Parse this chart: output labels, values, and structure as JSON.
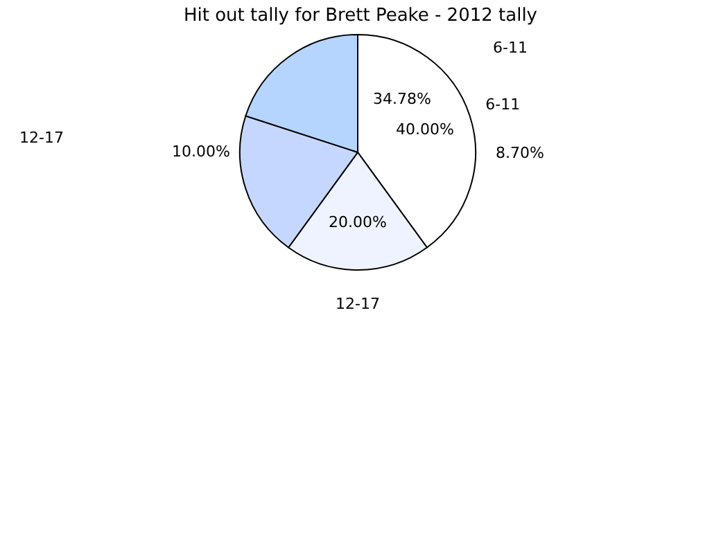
{
  "chart_data": {
    "type": "pie",
    "title": "Hit out tally for Brett Peake - 2012 tally",
    "categories": [
      "6-11",
      "12-17",
      null,
      null
    ],
    "values": [
      40,
      20,
      20,
      20
    ],
    "colors": [
      "#ffffff",
      "#eef3ff",
      "#c6d7ff",
      "#b5d5ff"
    ],
    "value_labels": [
      "40.00%",
      "20.00%",
      null,
      null
    ],
    "annotations": [
      "6-11",
      "12-17",
      "34.78%",
      "10.00%",
      "8.70%"
    ],
    "legend": false
  }
}
